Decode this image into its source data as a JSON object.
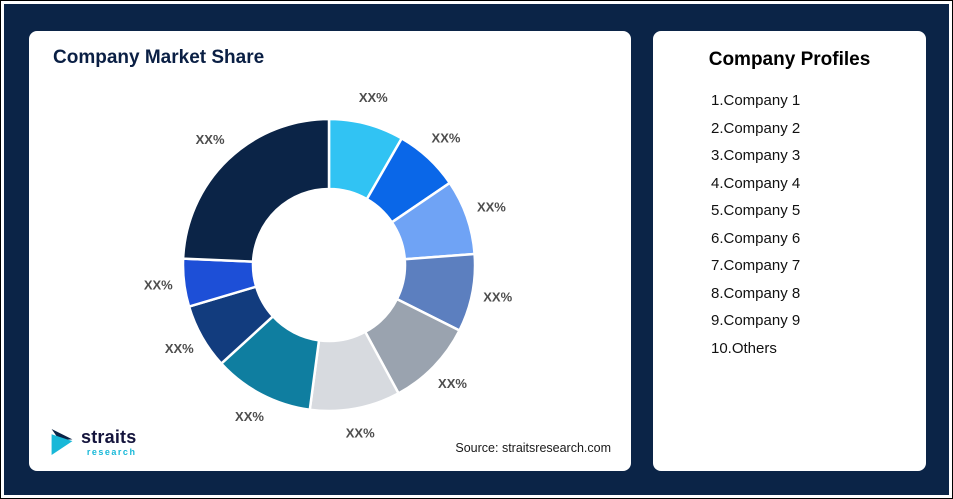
{
  "page": {
    "background_color": "#0B2447"
  },
  "chart_card": {
    "title": "Company Market Share",
    "source": "Source: straitsresearch.com",
    "logo": {
      "name": "straits",
      "sub": "research",
      "accent_color": "#18B8D8",
      "dark_color": "#0B2447"
    }
  },
  "profiles": {
    "title": "Company Profiles",
    "items": [
      "1.Company 1",
      "2.Company 2",
      "3.Company 3",
      "4.Company 4",
      "5.Company 5",
      "6.Company 6",
      "7.Company 7",
      "8.Company 8",
      "9.Company 9",
      "10.Others"
    ]
  },
  "chart_data": {
    "type": "pie",
    "subtype": "donut",
    "title": "Company Market Share",
    "note": "All slice data labels are placeholder text 'XX%'; slice sizes estimated from arc angles (percent of circle)",
    "legend_position": "none",
    "start_angle_deg": 0,
    "direction": "clockwise",
    "segments": [
      {
        "name": "Company 1",
        "value": 8.3,
        "display_label": "XX%",
        "color": "#31C3F3"
      },
      {
        "name": "Company 2",
        "value": 7.2,
        "display_label": "XX%",
        "color": "#0A67E8"
      },
      {
        "name": "Company 3",
        "value": 8.3,
        "display_label": "XX%",
        "color": "#6FA3F5"
      },
      {
        "name": "Company 4",
        "value": 8.6,
        "display_label": "XX%",
        "color": "#5C7FBF"
      },
      {
        "name": "Company 5",
        "value": 9.7,
        "display_label": "XX%",
        "color": "#9AA3AF"
      },
      {
        "name": "Company 6",
        "value": 10.0,
        "display_label": "XX%",
        "color": "#D7DADF"
      },
      {
        "name": "Company 7",
        "value": 11.1,
        "display_label": "XX%",
        "color": "#0F7EA0"
      },
      {
        "name": "Company 8",
        "value": 7.2,
        "display_label": "XX%",
        "color": "#123C7E"
      },
      {
        "name": "Company 9",
        "value": 5.3,
        "display_label": "XX%",
        "color": "#1D4FD7"
      },
      {
        "name": "Others",
        "value": 24.3,
        "display_label": "XX%",
        "color": "#0B2447"
      }
    ]
  }
}
